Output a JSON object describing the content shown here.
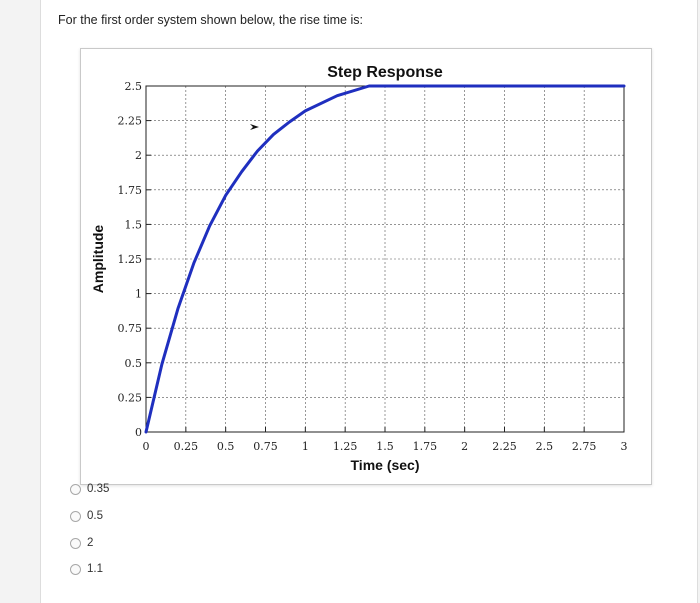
{
  "question": {
    "text": "For the  first order  system shown below, the rise time is:"
  },
  "answers": {
    "options": [
      {
        "label": "0.35"
      },
      {
        "label": "0.5"
      },
      {
        "label": "2"
      },
      {
        "label": "1.1"
      }
    ]
  },
  "chart_data": {
    "type": "line",
    "title": "Step Response",
    "xlabel": "Time (sec)",
    "ylabel": "Amplitude",
    "xlim": [
      0,
      3
    ],
    "ylim": [
      0,
      2.5
    ],
    "grid": true,
    "x_ticks": [
      "0",
      "0.25",
      "0.5",
      "0.75",
      "1",
      "1.25",
      "1.5",
      "1.75",
      "2",
      "2.25",
      "2.5",
      "2.75",
      "3"
    ],
    "y_ticks": [
      "0",
      "0.25",
      "0.5",
      "0.75",
      "1",
      "1.25",
      "1.5",
      "1.75",
      "2",
      "2.25",
      "2.5"
    ],
    "series": [
      {
        "x": [
          0,
          0.1,
          0.2,
          0.3,
          0.4,
          0.5,
          0.6,
          0.7,
          0.8,
          0.9,
          1.0,
          1.2,
          1.4,
          1.6,
          1.8,
          2.0,
          2.25,
          2.5,
          2.75,
          3.0
        ],
        "values": [
          0,
          0.49,
          0.89,
          1.22,
          1.49,
          1.71,
          1.88,
          2.03,
          2.15,
          2.24,
          2.32,
          2.43,
          2.5,
          2.54,
          2.57,
          2.585,
          2.593,
          2.597,
          2.599,
          2.6
        ]
      }
    ],
    "line_color": "#1f2fbf",
    "grid_color": "#555555",
    "cursor_icon": "arrow-cursor-icon"
  }
}
